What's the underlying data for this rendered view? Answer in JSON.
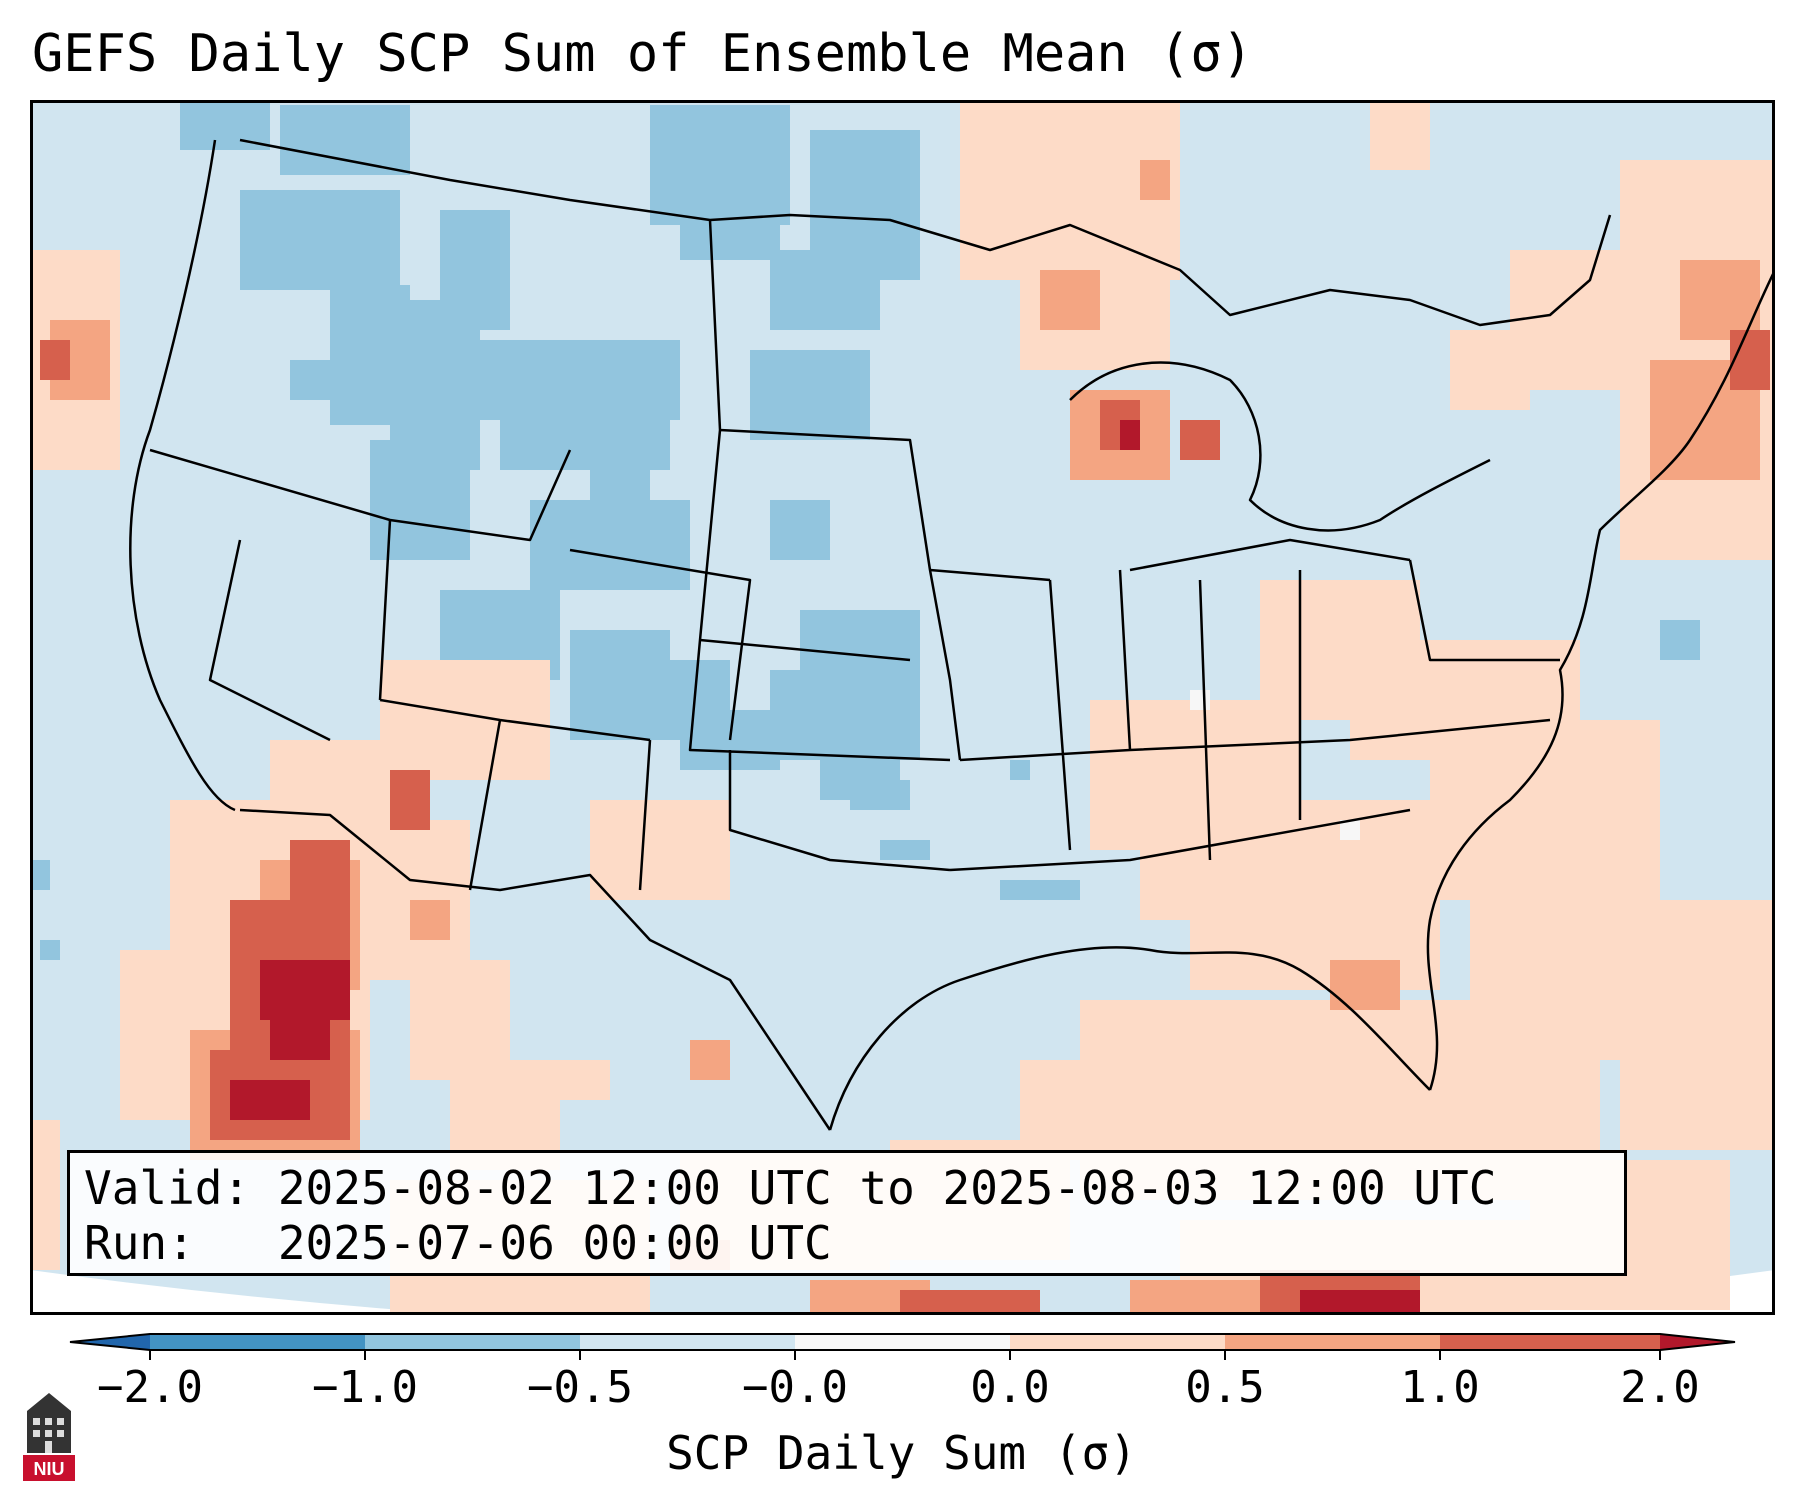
{
  "title": "GEFS Daily SCP Sum of Ensemble Mean (σ)",
  "info": {
    "valid_line": "Valid: 2025-08-02 12:00 UTC to 2025-08-03 12:00 UTC",
    "run_line": "Run:   2025-07-06 00:00 UTC"
  },
  "colorbar": {
    "label": "SCP Daily Sum (σ)",
    "ticks": [
      "−2.0",
      "−1.0",
      "−0.5",
      "−0.0",
      "0.0",
      "0.5",
      "1.0",
      "2.0"
    ],
    "colors": {
      "below_min": "#2166ac",
      "bin_m2_m1": "#4393c3",
      "bin_m1_m05": "#92c5de",
      "bin_m05_m0": "#d1e5f0",
      "bin_zero": "#f7f7f7",
      "bin_0_05": "#fddbc7",
      "bin_05_1": "#f4a582",
      "bin_1_2": "#d6604d",
      "above_max": "#b2182b"
    }
  },
  "logo": {
    "text": "NIU"
  }
}
